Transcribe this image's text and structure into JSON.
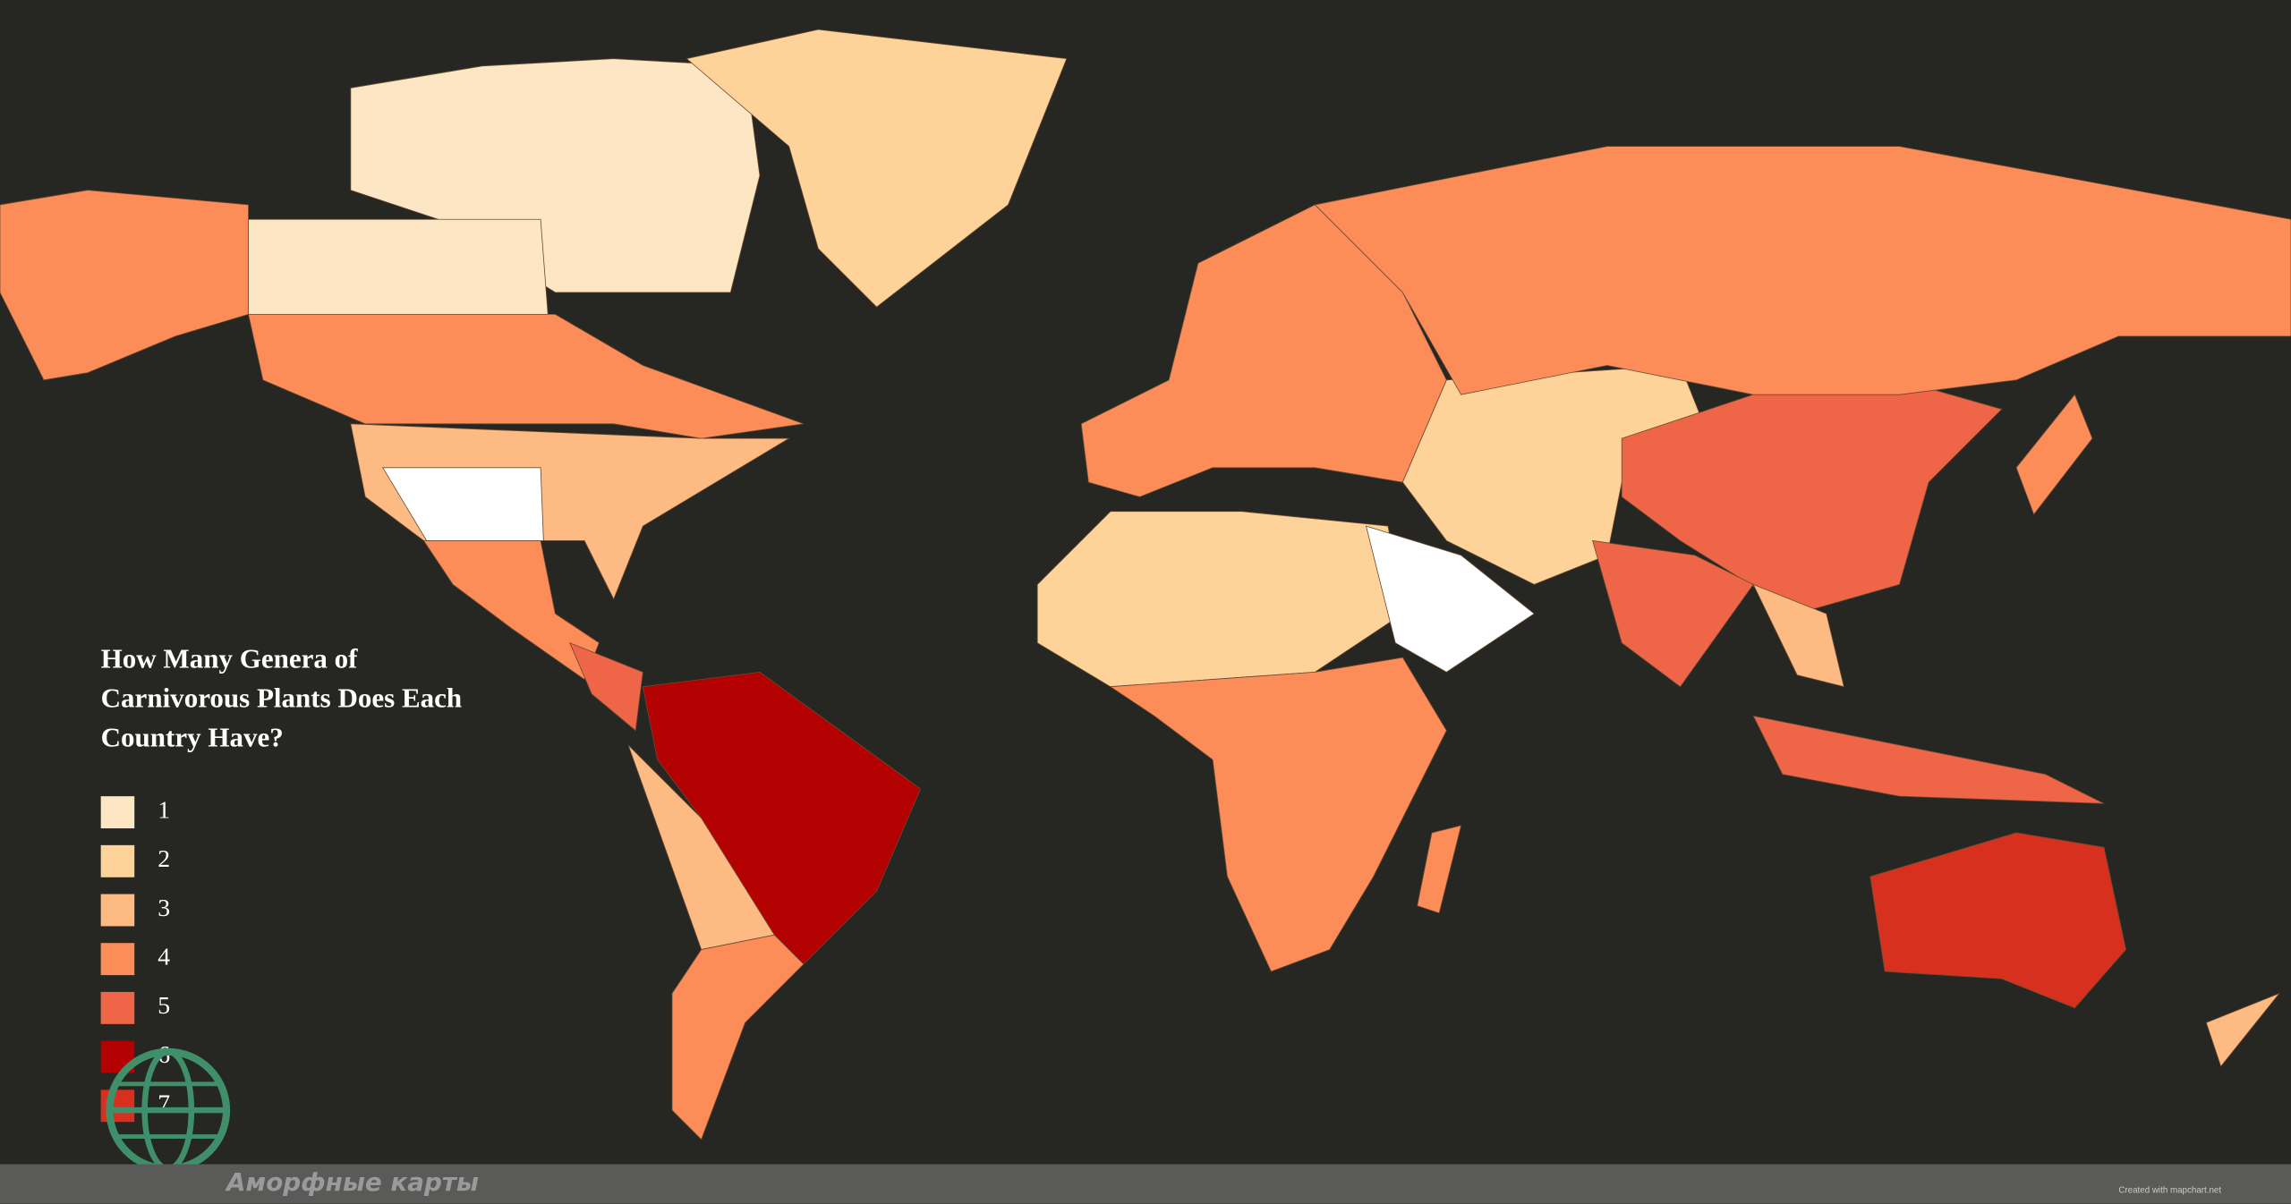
{
  "map": {
    "title_lines": [
      "How Many Genera of",
      "Carnivorous Plants Does Each",
      "Country Have?"
    ],
    "legend": {
      "values": [
        1,
        2,
        3,
        4,
        5,
        6,
        7
      ],
      "colors": [
        "#fde6c4",
        "#fdd39a",
        "#fdba82",
        "#fc8d59",
        "#ef6548",
        "#b30000",
        "#d7301f"
      ]
    },
    "zero_color": "#ffffff",
    "region_values": [
      1,
      1,
      4,
      4,
      2,
      3,
      0,
      4,
      5,
      6,
      3,
      4,
      4,
      2,
      4,
      0,
      2,
      5,
      5,
      3,
      5,
      4,
      7,
      4,
      3,
      4
    ],
    "watermark": "Аморфные карты",
    "credit": "Created with mapchart.net"
  }
}
